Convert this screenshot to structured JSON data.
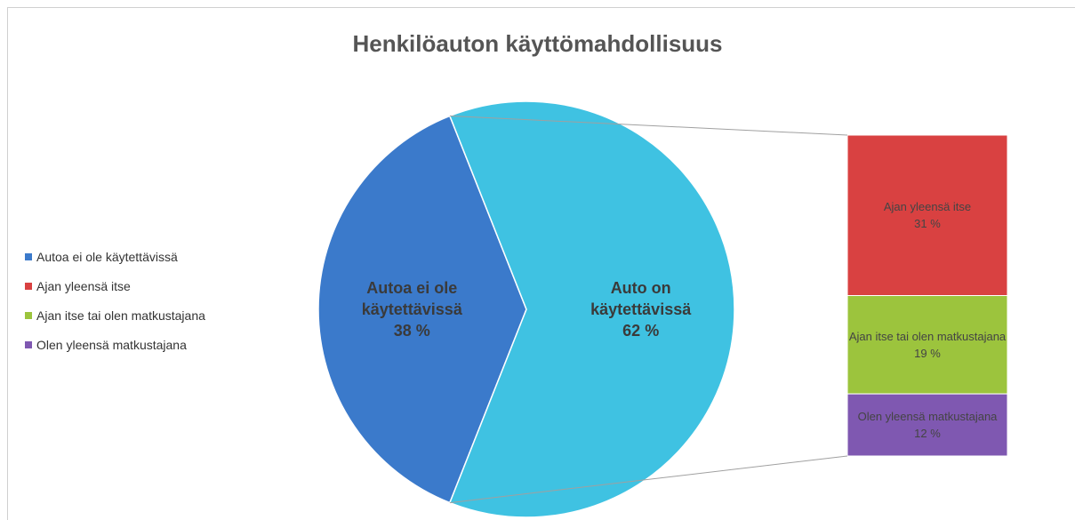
{
  "chart_data": {
    "type": "pie",
    "title": "Henkilöauton käyttömahdollisuus",
    "categories": [
      "Autoa ei ole käytettävissä",
      "Auto on käytettävissä"
    ],
    "values": [
      38,
      62
    ],
    "value_labels": [
      "38 %",
      "62 %"
    ],
    "colors": [
      "#3b7acb",
      "#3fc2e2"
    ],
    "breakdown": {
      "categories": [
        "Ajan yleensä itse",
        "Ajan itse tai olen matkustajana",
        "Olen yleensä matkustajana"
      ],
      "values": [
        31,
        19,
        12
      ],
      "value_labels": [
        "31 %",
        "19 %",
        "12 %"
      ],
      "colors": [
        "#d94141",
        "#9cc43d",
        "#7f58b1"
      ]
    },
    "legend": "left"
  }
}
